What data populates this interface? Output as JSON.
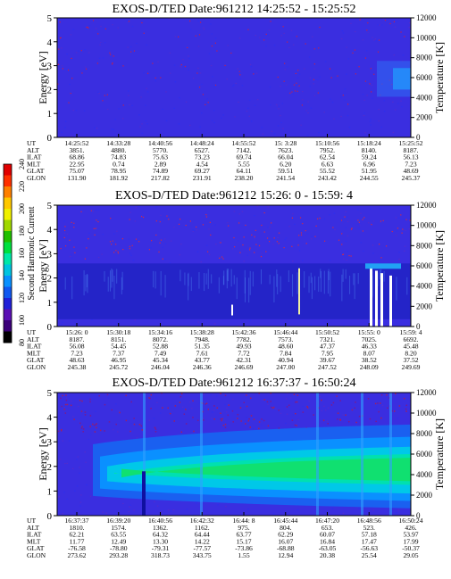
{
  "figure": {
    "colorbar": {
      "label": "Second Harmonic Current",
      "tick_values": [
        "80",
        "100",
        "120",
        "140",
        "160",
        "180",
        "200",
        "220",
        "240"
      ],
      "colors": [
        "#000000",
        "#3b007a",
        "#5a10b4",
        "#2020d8",
        "#1058f0",
        "#0890ff",
        "#00c4e0",
        "#00e8a8",
        "#00e040",
        "#20c000",
        "#a0d800",
        "#f0f000",
        "#ffc800",
        "#ff8000",
        "#ff3000",
        "#e00000"
      ]
    },
    "row_labels": [
      "UT",
      "ALT",
      "ILAT",
      "MLT",
      "GLAT",
      "GLON"
    ]
  },
  "chart_data": [
    {
      "type": "heatmap",
      "title": "EXOS-D/TED   Date:961212   14:25:52 - 15:25:52",
      "ylabel": "Energy [eV]",
      "ylabel_right": "Temperature [K]",
      "ylim": [
        0,
        5
      ],
      "ylim_right": [
        0,
        12000
      ],
      "yticks": [
        "0",
        "1",
        "2",
        "3",
        "4",
        "5"
      ],
      "yticks_right": [
        "0",
        "2000",
        "4000",
        "6000",
        "8000",
        "10000",
        "12000"
      ],
      "background": "#3a2ee0",
      "ephemeris": {
        "UT": [
          "14:25:52",
          "14:33:28",
          "14:40:56",
          "14:48:24",
          "14:55:52",
          "15: 3:28",
          "15:10:56",
          "15:18:24",
          "15:25:52"
        ],
        "ALT": [
          "3851.",
          "4880.",
          "5770.",
          "6527.",
          "7142.",
          "7623.",
          "7952.",
          "8140.",
          "8187."
        ],
        "ILAT": [
          "68.86",
          "74.83",
          "75.63",
          "73.23",
          "69.74",
          "66.04",
          "62.54",
          "59.24",
          "56.13"
        ],
        "MLT": [
          "22.95",
          "0.74",
          "2.89",
          "4.54",
          "5.55",
          "6.20",
          "6.63",
          "6.96",
          "7.23"
        ],
        "GLAT": [
          "75.07",
          "78.95",
          "74.89",
          "69.27",
          "64.11",
          "59.51",
          "55.52",
          "51.95",
          "48.69"
        ],
        "GLON": [
          "131.90",
          "181.92",
          "217.82",
          "231.91",
          "238.20",
          "241.54",
          "243.42",
          "244.55",
          "245.37"
        ]
      }
    },
    {
      "type": "heatmap",
      "title": "EXOS-D/TED   Date:961212   15:26: 0 - 15:59: 4",
      "ylabel": "Energy [eV]",
      "ylabel_right": "Temperature [K]",
      "ylim": [
        0,
        5
      ],
      "ylim_right": [
        0,
        12000
      ],
      "yticks": [
        "0",
        "1",
        "2",
        "3",
        "4",
        "5"
      ],
      "yticks_right": [
        "0",
        "2000",
        "4000",
        "6000",
        "8000",
        "10000",
        "12000"
      ],
      "background": "#3a2ee0",
      "ephemeris": {
        "UT": [
          "15:26: 0",
          "15:30:18",
          "15:34:16",
          "15:38:28",
          "15:42:36",
          "15:46:44",
          "15:50:52",
          "15:55: 0",
          "15:59: 4"
        ],
        "ALT": [
          "8187.",
          "8151.",
          "8072.",
          "7948.",
          "7782.",
          "7573.",
          "7321.",
          "7025.",
          "6692."
        ],
        "ILAT": [
          "56.08",
          "54.45",
          "52.88",
          "51.35",
          "49.93",
          "48.60",
          "47.37",
          "46.33",
          "45.48"
        ],
        "MLT": [
          "7.23",
          "7.37",
          "7.49",
          "7.61",
          "7.72",
          "7.84",
          "7.95",
          "8.07",
          "8.20"
        ],
        "GLAT": [
          "48.63",
          "46.95",
          "45.34",
          "43.77",
          "42.31",
          "40.94",
          "39.67",
          "38.52",
          "37.52"
        ],
        "GLON": [
          "245.38",
          "245.72",
          "246.04",
          "246.36",
          "246.69",
          "247.00",
          "247.52",
          "248.09",
          "249.69"
        ]
      }
    },
    {
      "type": "heatmap",
      "title": "EXOS-D/TED   Date:961212   16:37:37 - 16:50:24",
      "ylabel": "Energy [eV]",
      "ylabel_right": "Temperature [K]",
      "ylim": [
        0,
        5
      ],
      "ylim_right": [
        0,
        12000
      ],
      "yticks": [
        "0",
        "1",
        "2",
        "3",
        "4",
        "5"
      ],
      "yticks_right": [
        "0",
        "2000",
        "4000",
        "6000",
        "8000",
        "10000",
        "12000"
      ],
      "background": "#3a2ee0",
      "ephemeris": {
        "UT": [
          "16:37:37",
          "16:39:20",
          "16:40:56",
          "16:42:32",
          "16:44: 8",
          "16:45:44",
          "16:47:20",
          "16:48:56",
          "16:50:24"
        ],
        "ALT": [
          "1810.",
          "1574.",
          "1362.",
          "1162.",
          "975.",
          "804.",
          "653.",
          "523.",
          "426."
        ],
        "ILAT": [
          "62.21",
          "63.55",
          "64.32",
          "64.44",
          "63.77",
          "62.29",
          "60.07",
          "57.18",
          "53.97"
        ],
        "MLT": [
          "11.77",
          "12.49",
          "13.30",
          "14.22",
          "15.17",
          "16.07",
          "16.84",
          "17.47",
          "17.99"
        ],
        "GLAT": [
          "-76.58",
          "-78.80",
          "-79.31",
          "-77.57",
          "-73.86",
          "-68.88",
          "-63.05",
          "-56.63",
          "-50.37"
        ],
        "GLON": [
          "273.62",
          "293.28",
          "318.73",
          "343.75",
          "1.55",
          "12.94",
          "20.38",
          "25.54",
          "29.05"
        ]
      }
    }
  ]
}
